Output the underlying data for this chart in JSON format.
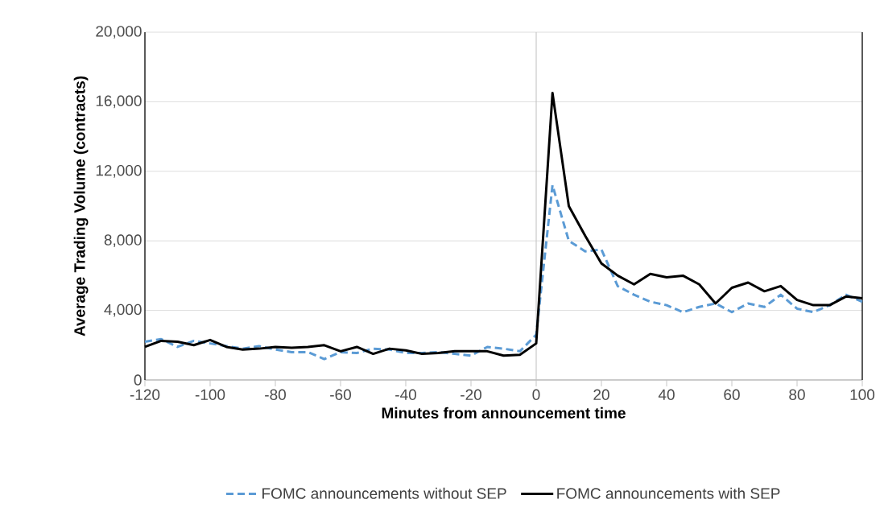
{
  "chart_data": {
    "type": "line",
    "xlabel": "Minutes from announcement time",
    "ylabel": "Average Trading Volume (contracts)",
    "x": [
      -120,
      -115,
      -110,
      -105,
      -100,
      -95,
      -90,
      -85,
      -80,
      -75,
      -70,
      -65,
      -60,
      -55,
      -50,
      -45,
      -40,
      -35,
      -30,
      -25,
      -20,
      -15,
      -10,
      -5,
      0,
      5,
      10,
      15,
      20,
      25,
      30,
      35,
      40,
      45,
      50,
      55,
      60,
      65,
      70,
      75,
      80,
      85,
      90,
      95,
      100
    ],
    "series": [
      {
        "name": "FOMC announcements without SEP",
        "color": "#5b9bd5",
        "line_style": "dashed",
        "values": [
          2200,
          2350,
          1900,
          2250,
          2100,
          1950,
          1800,
          1950,
          1750,
          1600,
          1600,
          1200,
          1600,
          1550,
          1800,
          1750,
          1550,
          1550,
          1600,
          1500,
          1400,
          1900,
          1800,
          1650,
          2600,
          11200,
          8000,
          7400,
          7500,
          5400,
          4900,
          4500,
          4300,
          3900,
          4200,
          4400,
          3900,
          4400,
          4200,
          4900,
          4100,
          3900,
          4300,
          4900,
          4500
        ]
      },
      {
        "name": "FOMC announcements with SEP",
        "color": "#000000",
        "line_style": "solid",
        "values": [
          1900,
          2250,
          2200,
          2000,
          2300,
          1900,
          1750,
          1800,
          1900,
          1850,
          1900,
          2000,
          1650,
          1900,
          1500,
          1800,
          1700,
          1500,
          1550,
          1650,
          1650,
          1650,
          1400,
          1450,
          2100,
          16500,
          10000,
          8300,
          6700,
          6000,
          5500,
          6100,
          5900,
          6000,
          5500,
          4400,
          5300,
          5600,
          5100,
          5400,
          4600,
          4300,
          4300,
          4800,
          4700
        ]
      }
    ],
    "xlim": [
      -120,
      100
    ],
    "xticks": [
      -120,
      -100,
      -80,
      -60,
      -40,
      -20,
      0,
      20,
      40,
      60,
      80,
      100
    ],
    "ylim": [
      0,
      20000
    ],
    "yticks": [
      {
        "value": 0,
        "label": "0"
      },
      {
        "value": 4000,
        "label": "4,000"
      },
      {
        "value": 8000,
        "label": "8,000"
      },
      {
        "value": 12000,
        "label": "12,000"
      },
      {
        "value": 16000,
        "label": "16,000"
      },
      {
        "value": 20000,
        "label": "20,000"
      }
    ],
    "ref_lines": [
      {
        "axis": "x",
        "value": 0,
        "color": "#bfbfbf"
      }
    ],
    "grid": "y",
    "legend": "bottom",
    "marker": "none"
  }
}
